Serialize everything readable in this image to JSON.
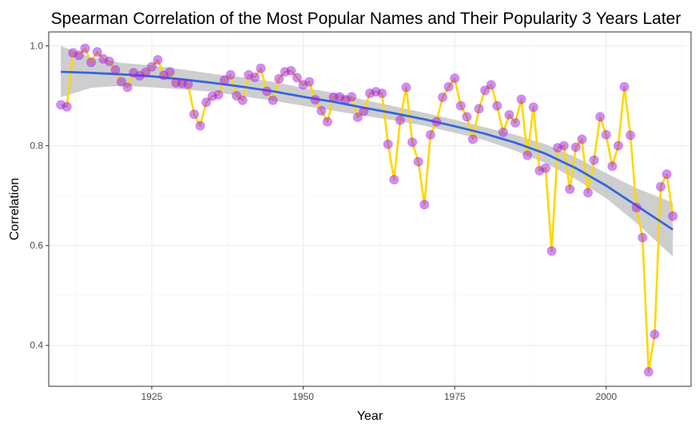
{
  "chart_data": {
    "type": "line",
    "title": "Spearman Correlation of the Most Popular Names and Their Popularity 3 Years Later",
    "xlabel": "Year",
    "ylabel": "Correlation",
    "xlim": [
      1908,
      2014
    ],
    "ylim": [
      0.318,
      1.028
    ],
    "x_ticks": [
      1925,
      1950,
      1975,
      2000
    ],
    "y_ticks": [
      0.4,
      0.6,
      0.8,
      1.0
    ],
    "y_tick_labels": [
      "0.4",
      "0.6",
      "0.8",
      "1.0"
    ],
    "grid": true,
    "colors": {
      "line": "#FFD700",
      "points": "#A020F0",
      "smooth": "#3366DD",
      "ribbon": "#BEBEBE"
    },
    "series": [
      {
        "x": [
          1910,
          1911,
          1912,
          1913,
          1914,
          1915,
          1916,
          1917,
          1918,
          1919,
          1920,
          1921,
          1922,
          1923,
          1924,
          1925,
          1926,
          1927,
          1928,
          1929,
          1930,
          1931,
          1932,
          1933,
          1934,
          1935,
          1936,
          1937,
          1938,
          1939,
          1940,
          1941,
          1942,
          1943,
          1944,
          1945,
          1946,
          1947,
          1948,
          1949,
          1950,
          1951,
          1952,
          1953,
          1954,
          1955,
          1956,
          1957,
          1958,
          1959,
          1960,
          1961,
          1962,
          1963,
          1964,
          1965,
          1966,
          1967,
          1968,
          1969,
          1970,
          1971,
          1972,
          1973,
          1974,
          1975,
          1976,
          1977,
          1978,
          1979,
          1980,
          1981,
          1982,
          1983,
          1984,
          1985,
          1986,
          1987,
          1988,
          1989,
          1990,
          1991,
          1992,
          1993,
          1994,
          1995,
          1996,
          1997,
          1998,
          1999,
          2000,
          2001,
          2002,
          2003,
          2004,
          2005,
          2006,
          2007,
          2008,
          2009,
          2010,
          2011
        ],
        "values": [
          0.882,
          0.878,
          0.986,
          0.981,
          0.995,
          0.967,
          0.988,
          0.974,
          0.969,
          0.952,
          0.928,
          0.917,
          0.946,
          0.94,
          0.947,
          0.958,
          0.972,
          0.941,
          0.948,
          0.926,
          0.925,
          0.923,
          0.863,
          0.84,
          0.887,
          0.899,
          0.902,
          0.931,
          0.942,
          0.9,
          0.891,
          0.942,
          0.937,
          0.955,
          0.909,
          0.891,
          0.934,
          0.948,
          0.95,
          0.936,
          0.922,
          0.928,
          0.892,
          0.87,
          0.848,
          0.897,
          0.898,
          0.892,
          0.898,
          0.857,
          0.869,
          0.905,
          0.908,
          0.905,
          0.803,
          0.732,
          0.851,
          0.917,
          0.807,
          0.768,
          0.682,
          0.822,
          0.848,
          0.897,
          0.918,
          0.935,
          0.88,
          0.858,
          0.813,
          0.874,
          0.911,
          0.922,
          0.88,
          0.827,
          0.862,
          0.846,
          0.893,
          0.781,
          0.877,
          0.75,
          0.755,
          0.589,
          0.796,
          0.8,
          0.713,
          0.797,
          0.813,
          0.706,
          0.771,
          0.858,
          0.822,
          0.759,
          0.8,
          0.918,
          0.821,
          0.676,
          0.616,
          0.347,
          0.422,
          0.718,
          0.743,
          0.659
        ]
      },
      {
        "x": [
          1910,
          1915,
          1920,
          1925,
          1930,
          1935,
          1940,
          1945,
          1950,
          1955,
          1960,
          1965,
          1970,
          1975,
          1980,
          1985,
          1990,
          1995,
          2000,
          2005,
          2011
        ],
        "values": [
          0.948,
          0.946,
          0.943,
          0.939,
          0.933,
          0.926,
          0.918,
          0.909,
          0.898,
          0.888,
          0.876,
          0.865,
          0.853,
          0.839,
          0.824,
          0.806,
          0.784,
          0.755,
          0.72,
          0.68,
          0.632
        ],
        "lower": [
          0.897,
          0.916,
          0.92,
          0.917,
          0.913,
          0.908,
          0.899,
          0.89,
          0.88,
          0.87,
          0.86,
          0.851,
          0.84,
          0.826,
          0.811,
          0.79,
          0.765,
          0.733,
          0.695,
          0.645,
          0.578
        ],
        "upper": [
          1.0,
          0.977,
          0.966,
          0.961,
          0.953,
          0.944,
          0.937,
          0.928,
          0.916,
          0.906,
          0.892,
          0.879,
          0.866,
          0.852,
          0.837,
          0.822,
          0.803,
          0.777,
          0.745,
          0.715,
          0.686
        ]
      }
    ]
  }
}
